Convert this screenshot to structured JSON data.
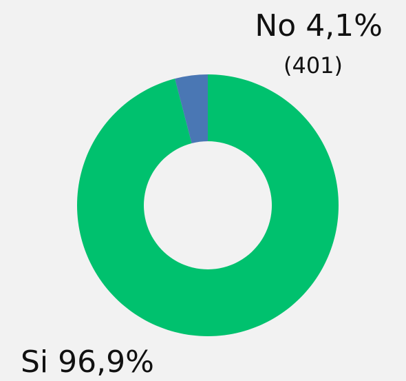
{
  "chart_data": {
    "type": "donut",
    "categories": [
      "Si",
      "No"
    ],
    "values": [
      96.9,
      4.1
    ],
    "value_labels": [
      "96,9%",
      "4,1%"
    ],
    "colors": [
      "#00c16e",
      "#4a77b4"
    ],
    "annotation": "(401)"
  }
}
